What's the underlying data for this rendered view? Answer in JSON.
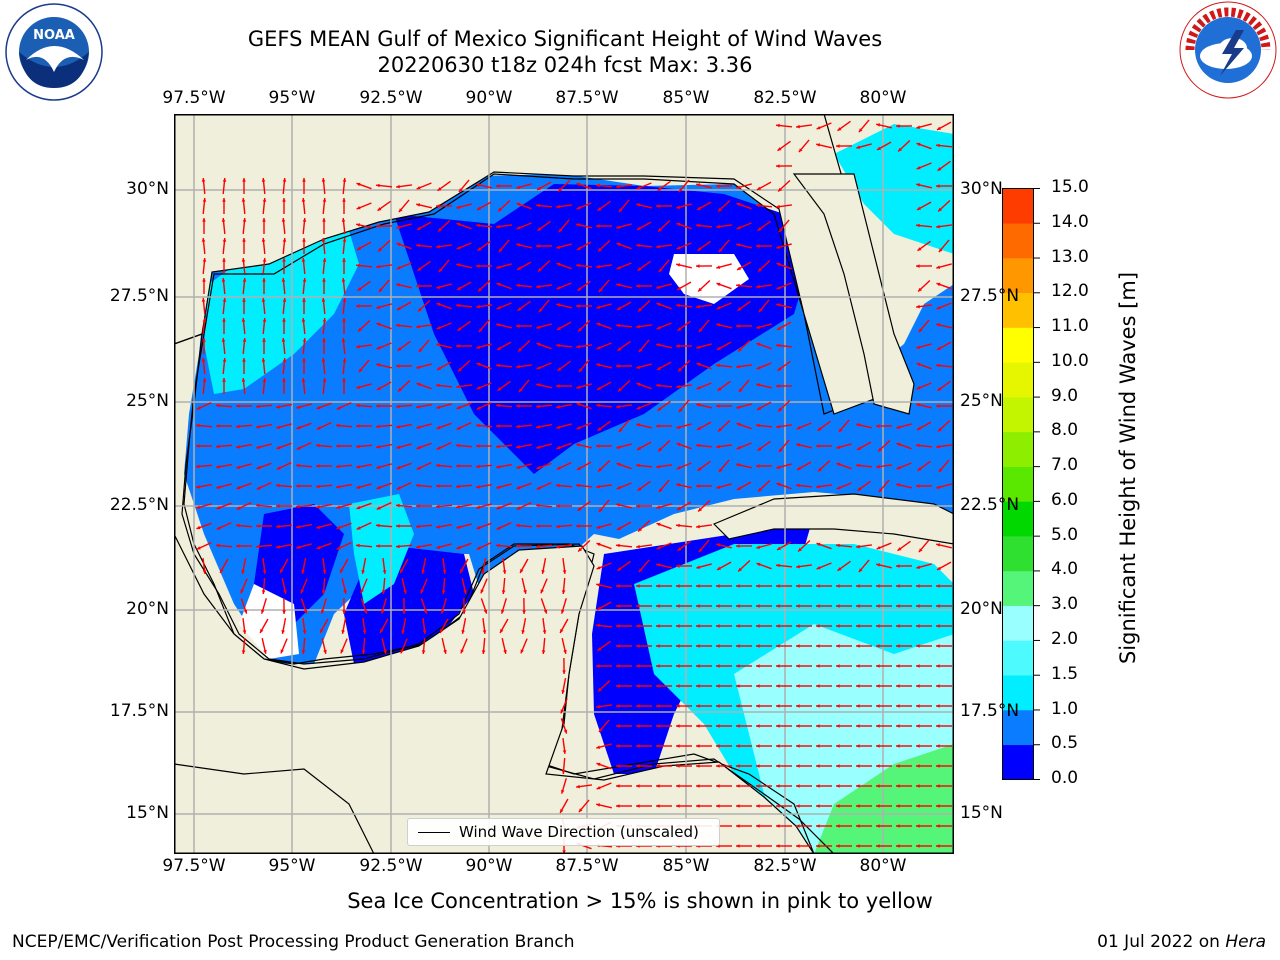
{
  "header": {
    "title_line1": "GEFS MEAN Gulf of Mexico Significant Height of Wind Waves",
    "title_line2": "20220630 t18z 024h fcst   Max: 3.36"
  },
  "logos": {
    "left": "NOAA",
    "right": "NATIONAL WEATHER SERVICE"
  },
  "map": {
    "lon_ticks": [
      "97.5°W",
      "95°W",
      "92.5°W",
      "90°W",
      "87.5°W",
      "85°W",
      "82.5°W",
      "80°W"
    ],
    "lat_ticks": [
      "30°N",
      "27.5°N",
      "25°N",
      "22.5°N",
      "20°N",
      "17.5°N",
      "15°N"
    ],
    "legend_label": "Wind Wave Direction (unscaled)",
    "arrow_color": "#ff0000",
    "land_color": "#efefdb"
  },
  "colorbar": {
    "label": "Significant Height of Wind Waves [m]",
    "ticks": [
      "0.0",
      "0.5",
      "1.0",
      "1.5",
      "2.0",
      "3.0",
      "4.0",
      "5.0",
      "6.0",
      "7.0",
      "8.0",
      "9.0",
      "10.0",
      "11.0",
      "12.0",
      "13.0",
      "14.0",
      "15.0"
    ],
    "colors": [
      "#0000ff",
      "#0a7cff",
      "#00eeff",
      "#4dfbff",
      "#99ffff",
      "#55f57a",
      "#30e030",
      "#00d800",
      "#5ae800",
      "#8eee00",
      "#c4f500",
      "#e6f500",
      "#ffff00",
      "#ffc000",
      "#ff9800",
      "#ff6a00",
      "#ff3c00",
      "#ff0000"
    ]
  },
  "note": "Sea Ice Concentration > 15% is shown in pink to yellow",
  "footer": {
    "left": "NCEP/EMC/Verification Post Processing Product Generation Branch",
    "right_date": "01 Jul 2022 on ",
    "right_host": "Hera"
  }
}
